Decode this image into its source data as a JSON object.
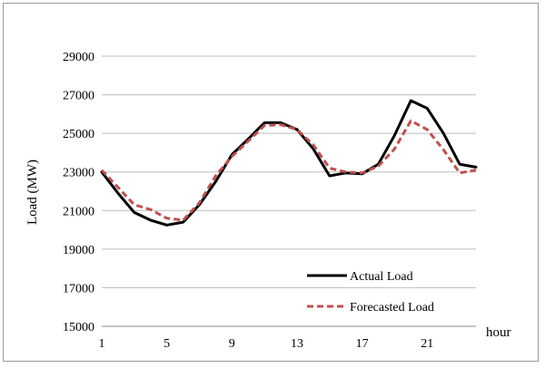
{
  "chart_data": {
    "type": "line",
    "xlabel": "hour",
    "ylabel": "Load (MW)",
    "x": [
      1,
      2,
      3,
      4,
      5,
      6,
      7,
      8,
      9,
      10,
      11,
      12,
      13,
      14,
      15,
      16,
      17,
      18,
      19,
      20,
      21,
      22,
      23,
      24
    ],
    "xticks": [
      1,
      5,
      9,
      13,
      17,
      21
    ],
    "yticks": [
      15000,
      17000,
      19000,
      21000,
      23000,
      25000,
      27000,
      29000
    ],
    "xlim": [
      1,
      24
    ],
    "ylim": [
      15000,
      29000
    ],
    "grid": "horizontal",
    "legend_position": "bottom-right",
    "series": [
      {
        "name": "Actual Load",
        "color": "#000000",
        "style": "solid",
        "values": [
          23000,
          21900,
          20900,
          20500,
          20250,
          20400,
          21300,
          22500,
          23900,
          24700,
          25550,
          25550,
          25200,
          24200,
          22800,
          22950,
          22900,
          23400,
          24900,
          26700,
          26300,
          25000,
          23400,
          23250
        ]
      },
      {
        "name": "Forecasted Load",
        "color": "#c0504d",
        "style": "dashed",
        "values": [
          23100,
          22200,
          21300,
          21050,
          20600,
          20500,
          21400,
          22800,
          23800,
          24600,
          25400,
          25450,
          25200,
          24400,
          23200,
          23000,
          22950,
          23300,
          24200,
          25650,
          25200,
          24150,
          22950,
          23100
        ]
      }
    ]
  }
}
